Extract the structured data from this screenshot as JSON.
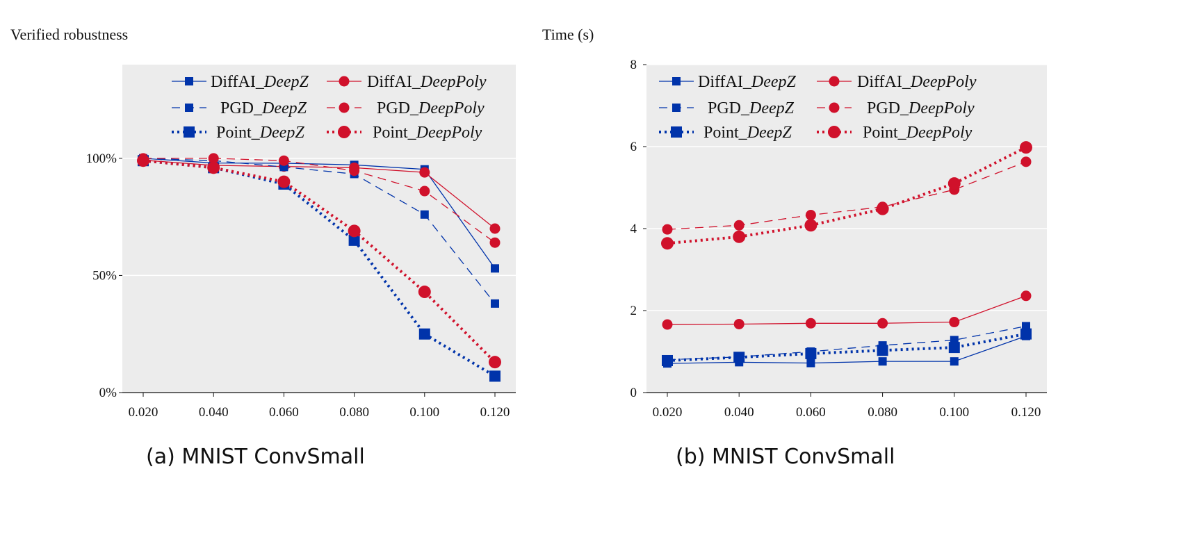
{
  "colors": {
    "deepz": "#0033aa",
    "deeppoly": "#d0112b",
    "plot_bg": "#ececec",
    "grid": "#ffffff"
  },
  "chart_data": [
    {
      "type": "line",
      "caption": "(a) MNIST ConvSmall",
      "ylabel": "Verified robustness",
      "xlabel": "",
      "categories": [
        "0.020",
        "0.040",
        "0.060",
        "0.080",
        "0.100",
        "0.120"
      ],
      "ylim": [
        0,
        140
      ],
      "yticks": [
        {
          "value": 0,
          "label": "0%"
        },
        {
          "value": 50,
          "label": "50%"
        },
        {
          "value": 100,
          "label": "100%"
        }
      ],
      "grid": "horizontal",
      "legend_position": "top",
      "series": [
        {
          "name_prefix": "DiffAI_",
          "name_domain": "DeepZ",
          "style": "solid",
          "marker": "square",
          "color": "#0033aa",
          "values": [
            100,
            98,
            97.9,
            97.2,
            95.3,
            53
          ]
        },
        {
          "name_prefix": "DiffAI_",
          "name_domain": "DeepPoly",
          "style": "solid",
          "marker": "circle",
          "color": "#d0112b",
          "values": [
            99.2,
            97,
            96.5,
            96,
            94,
            70
          ]
        },
        {
          "name_prefix": "PGD_",
          "name_domain": "DeepZ",
          "style": "dashed",
          "marker": "square",
          "color": "#0033aa",
          "values": [
            100,
            99,
            96.3,
            93.3,
            76,
            38
          ]
        },
        {
          "name_prefix": "PGD_",
          "name_domain": "DeepPoly",
          "style": "dashed",
          "marker": "circle",
          "color": "#d0112b",
          "values": [
            100,
            100,
            99,
            94.7,
            86,
            64
          ]
        },
        {
          "name_prefix": "Point_",
          "name_domain": "DeepZ",
          "style": "dotted",
          "marker": "square",
          "color": "#0033aa",
          "values": [
            99,
            96,
            89,
            65,
            25,
            7
          ]
        },
        {
          "name_prefix": "Point_",
          "name_domain": "DeepPoly",
          "style": "dotted",
          "marker": "circle",
          "color": "#d0112b",
          "values": [
            99,
            96,
            90,
            69,
            43,
            13
          ]
        }
      ]
    },
    {
      "type": "line",
      "caption": "(b) MNIST ConvSmall",
      "ylabel": "Time (s)",
      "xlabel": "",
      "categories": [
        "0.020",
        "0.040",
        "0.060",
        "0.080",
        "0.100",
        "0.120"
      ],
      "ylim": [
        0,
        8
      ],
      "yticks": [
        {
          "value": 0,
          "label": "0"
        },
        {
          "value": 2,
          "label": "2"
        },
        {
          "value": 4,
          "label": "4"
        },
        {
          "value": 6,
          "label": "6"
        },
        {
          "value": 8,
          "label": "8"
        }
      ],
      "grid": "horizontal",
      "legend_position": "top",
      "series": [
        {
          "name_prefix": "DiffAI_",
          "name_domain": "DeepZ",
          "style": "solid",
          "marker": "square",
          "color": "#0033aa",
          "values": [
            0.71,
            0.74,
            0.72,
            0.76,
            0.76,
            1.38
          ]
        },
        {
          "name_prefix": "DiffAI_",
          "name_domain": "DeepPoly",
          "style": "solid",
          "marker": "circle",
          "color": "#d0112b",
          "values": [
            1.66,
            1.67,
            1.69,
            1.69,
            1.72,
            2.36
          ]
        },
        {
          "name_prefix": "PGD_",
          "name_domain": "DeepZ",
          "style": "dashed",
          "marker": "square",
          "color": "#0033aa",
          "values": [
            0.8,
            0.87,
            1.0,
            1.15,
            1.28,
            1.62
          ]
        },
        {
          "name_prefix": "PGD_",
          "name_domain": "DeepPoly",
          "style": "dashed",
          "marker": "circle",
          "color": "#d0112b",
          "values": [
            3.98,
            4.08,
            4.33,
            4.53,
            4.95,
            5.63
          ]
        },
        {
          "name_prefix": "Point_",
          "name_domain": "DeepZ",
          "style": "dotted",
          "marker": "square",
          "color": "#0033aa",
          "values": [
            0.78,
            0.86,
            0.95,
            1.03,
            1.1,
            1.43
          ]
        },
        {
          "name_prefix": "Point_",
          "name_domain": "DeepPoly",
          "style": "dotted",
          "marker": "circle",
          "color": "#d0112b",
          "values": [
            3.64,
            3.8,
            4.08,
            4.48,
            5.1,
            5.98
          ]
        }
      ]
    }
  ]
}
